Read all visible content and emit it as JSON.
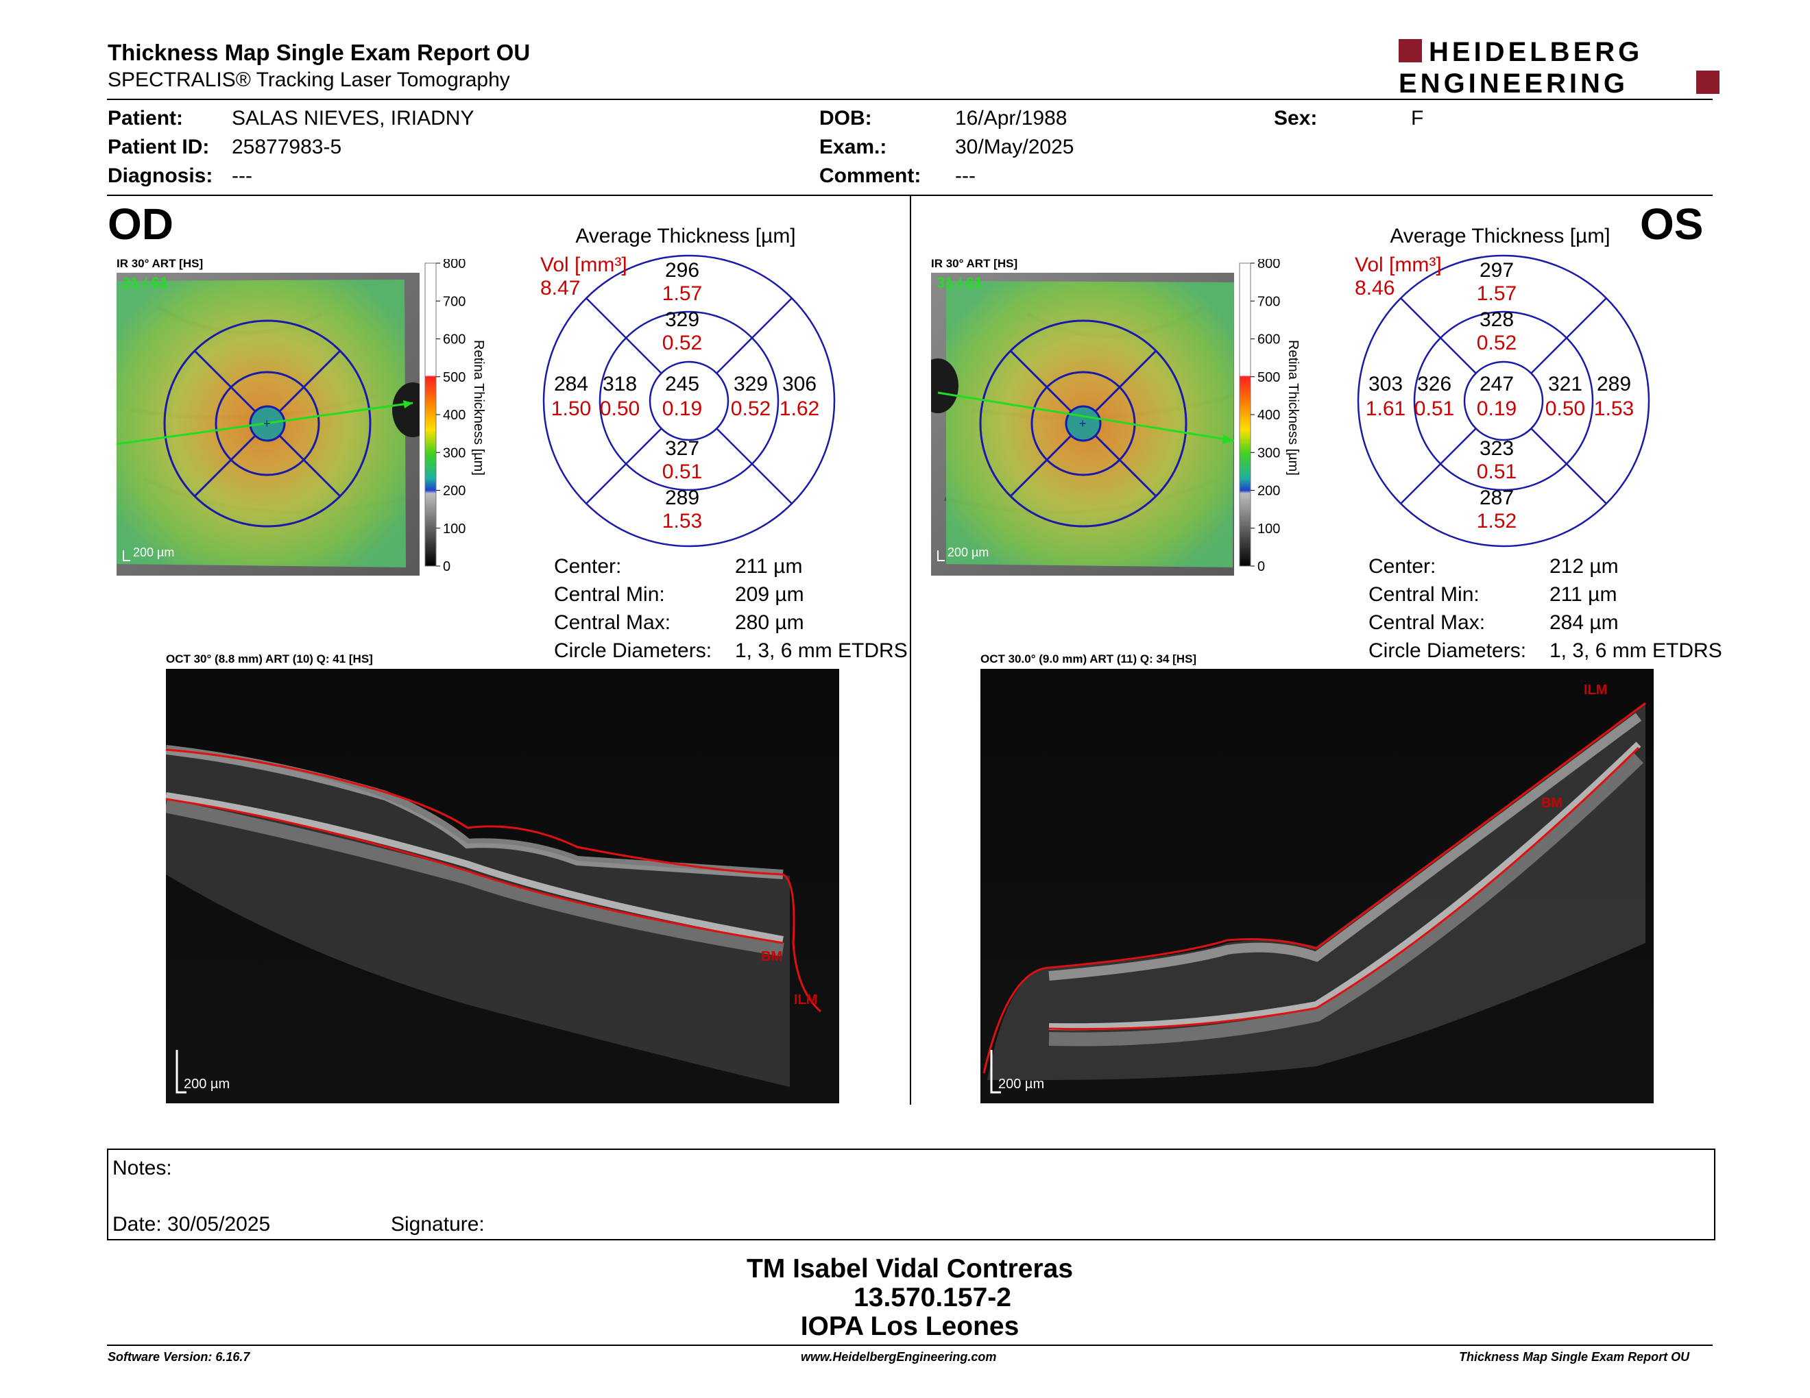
{
  "report": {
    "title": "Thickness Map Single Exam Report OU",
    "subtitle": "SPECTRALIS® Tracking Laser Tomography",
    "logo_line1": "HEIDELBERG",
    "logo_line2": "ENGINEERING",
    "brand_color": "#8b1a2b"
  },
  "patient": {
    "patient_label": "Patient:",
    "patient_value": "SALAS NIEVES, IRIADNY",
    "id_label": "Patient ID:",
    "id_value": "25877983-5",
    "diagnosis_label": "Diagnosis:",
    "diagnosis_value": "---",
    "dob_label": "DOB:",
    "dob_value": "16/Apr/1988",
    "exam_label": "Exam.:",
    "exam_value": "30/May/2025",
    "comment_label": "Comment:",
    "comment_value": "---",
    "sex_label": "Sex:",
    "sex_value": "F"
  },
  "od": {
    "label": "OD",
    "ir_title": "IR 30° ART [HS]",
    "ir_overlay": "31 / 61",
    "scale_bar": "200 µm",
    "colorbar_ticks": [
      "800",
      "700",
      "600",
      "500",
      "400",
      "300",
      "200",
      "100",
      "0"
    ],
    "colorbar_title": "Retina Thickness [µm]",
    "avg_title": "Average Thickness [µm]",
    "vol_label": "Vol [mm³]",
    "vol_value": "8.47",
    "sectors": {
      "outer_sup": {
        "t": "296",
        "v": "1.57"
      },
      "inner_sup": {
        "t": "329",
        "v": "0.52"
      },
      "outer_left": {
        "t": "284",
        "v": "1.50"
      },
      "inner_left": {
        "t": "318",
        "v": "0.50"
      },
      "center": {
        "t": "245",
        "v": "0.19"
      },
      "inner_right": {
        "t": "329",
        "v": "0.52"
      },
      "outer_right": {
        "t": "306",
        "v": "1.62"
      },
      "inner_inf": {
        "t": "327",
        "v": "0.51"
      },
      "outer_inf": {
        "t": "289",
        "v": "1.53"
      }
    },
    "stats": [
      {
        "label": "Center:",
        "value": "211 µm"
      },
      {
        "label": "Central Min:",
        "value": "209 µm"
      },
      {
        "label": "Central Max:",
        "value": "280 µm"
      },
      {
        "label": "Circle Diameters:",
        "value": "1, 3, 6 mm ETDRS"
      }
    ],
    "oct_title": "OCT 30° (8.8 mm) ART (10) Q: 41 [HS]",
    "oct_scale": "200 µm",
    "oct_bm": "BM",
    "oct_ilm": "ILM"
  },
  "os": {
    "label": "OS",
    "ir_title": "IR 30° ART [HS]",
    "ir_overlay": "31 / 61",
    "scale_bar": "200 µm",
    "colorbar_ticks": [
      "800",
      "700",
      "600",
      "500",
      "400",
      "300",
      "200",
      "100",
      "0"
    ],
    "colorbar_title": "Retina Thickness [µm]",
    "avg_title": "Average Thickness [µm]",
    "vol_label": "Vol [mm³]",
    "vol_value": "8.46",
    "sectors": {
      "outer_sup": {
        "t": "297",
        "v": "1.57"
      },
      "inner_sup": {
        "t": "328",
        "v": "0.52"
      },
      "outer_left": {
        "t": "303",
        "v": "1.61"
      },
      "inner_left": {
        "t": "326",
        "v": "0.51"
      },
      "center": {
        "t": "247",
        "v": "0.19"
      },
      "inner_right": {
        "t": "321",
        "v": "0.50"
      },
      "outer_right": {
        "t": "289",
        "v": "1.53"
      },
      "inner_inf": {
        "t": "323",
        "v": "0.51"
      },
      "outer_inf": {
        "t": "287",
        "v": "1.52"
      }
    },
    "stats": [
      {
        "label": "Center:",
        "value": "212 µm"
      },
      {
        "label": "Central Min:",
        "value": "211 µm"
      },
      {
        "label": "Central Max:",
        "value": "284 µm"
      },
      {
        "label": "Circle Diameters:",
        "value": "1, 3, 6 mm ETDRS"
      }
    ],
    "oct_title": "OCT 30.0° (9.0 mm) ART (11) Q: 34 [HS]",
    "oct_scale": "200 µm",
    "oct_bm": "BM",
    "oct_ilm": "ILM"
  },
  "notes": {
    "notes_label": "Notes:",
    "date_label": "Date: 30/05/2025",
    "signature_label": "Signature:"
  },
  "signer": {
    "name": "TM Isabel Vidal Contreras",
    "id": "13.570.157-2",
    "org": "IOPA Los Leones"
  },
  "footer": {
    "software": "Software Version: 6.16.7",
    "url": "www.HeidelbergEngineering.com",
    "report": "Thickness Map Single Exam Report OU"
  }
}
